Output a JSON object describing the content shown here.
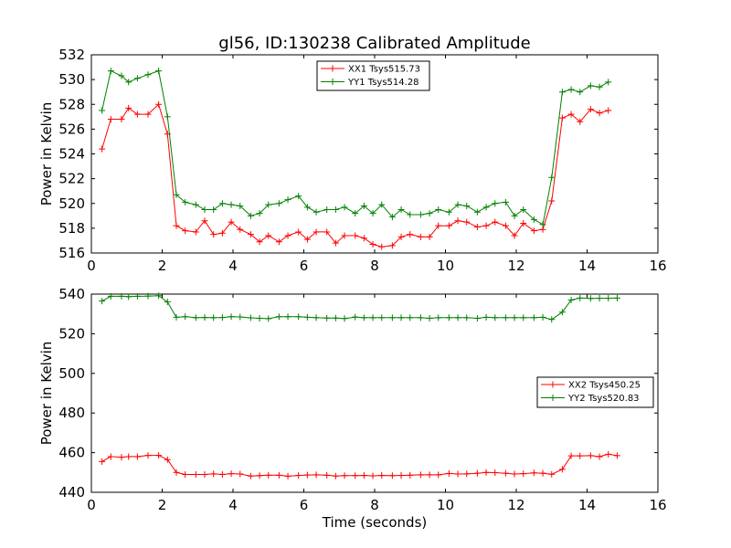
{
  "figure": {
    "title": "gl56, ID:130238 Calibrated Amplitude"
  },
  "colors": {
    "background": "#ffffff",
    "axes": "#000000",
    "XX1": "#ff0000",
    "YY1": "#008000",
    "XX2": "#ff0000",
    "YY2": "#008000"
  },
  "chart_data": [
    {
      "type": "line",
      "title": "gl56, ID:130238 Calibrated Amplitude",
      "xlabel": "",
      "ylabel": "Power in Kelvin",
      "xlim": [
        0,
        16
      ],
      "ylim": [
        516,
        532
      ],
      "xticks": [
        0,
        2,
        4,
        6,
        8,
        10,
        12,
        14,
        16
      ],
      "yticks": [
        516,
        518,
        520,
        522,
        524,
        526,
        528,
        530,
        532
      ],
      "grid": false,
      "legend_position": "top-center",
      "marker": "plus",
      "x": [
        0.3,
        0.55,
        0.85,
        1.05,
        1.3,
        1.6,
        1.9,
        2.15,
        2.4,
        2.65,
        2.95,
        3.2,
        3.45,
        3.7,
        3.95,
        4.2,
        4.5,
        4.75,
        5.0,
        5.3,
        5.55,
        5.85,
        6.1,
        6.35,
        6.65,
        6.9,
        7.15,
        7.45,
        7.7,
        7.95,
        8.2,
        8.5,
        8.75,
        9.0,
        9.3,
        9.55,
        9.8,
        10.1,
        10.35,
        10.6,
        10.9,
        11.15,
        11.4,
        11.7,
        11.95,
        12.2,
        12.5,
        12.75,
        13.0,
        13.3,
        13.55,
        13.8,
        14.1,
        14.35,
        14.6,
        14.85
      ],
      "series": [
        {
          "name": "XX1 Tsys515.73",
          "values": [
            524.4,
            526.8,
            526.8,
            527.7,
            527.2,
            527.2,
            528.0,
            525.6,
            518.2,
            517.8,
            517.7,
            518.6,
            517.5,
            517.6,
            518.5,
            517.9,
            517.5,
            516.9,
            517.4,
            516.9,
            517.4,
            517.7,
            517.1,
            517.7,
            517.7,
            516.8,
            517.4,
            517.4,
            517.2,
            516.7,
            516.5,
            516.6,
            517.3,
            517.5,
            517.3,
            517.3,
            518.2,
            518.2,
            518.6,
            518.5,
            518.1,
            518.2,
            518.5,
            518.2,
            517.4,
            518.4,
            517.8,
            517.9,
            520.2,
            526.9,
            527.2,
            526.6,
            527.6,
            527.3,
            527.5,
            null
          ]
        },
        {
          "name": "YY1 Tsys514.28",
          "values": [
            527.5,
            530.7,
            530.3,
            529.8,
            530.1,
            530.4,
            530.7,
            527.0,
            520.7,
            520.1,
            519.9,
            519.5,
            519.5,
            520.0,
            519.9,
            519.8,
            519.0,
            519.2,
            519.9,
            520.0,
            520.3,
            520.6,
            519.7,
            519.3,
            519.5,
            519.5,
            519.7,
            519.2,
            519.8,
            519.2,
            519.9,
            518.9,
            519.5,
            519.1,
            519.1,
            519.2,
            519.5,
            519.3,
            519.9,
            519.8,
            519.3,
            519.7,
            520.0,
            520.1,
            519.0,
            519.5,
            518.7,
            518.3,
            522.1,
            529.0,
            529.2,
            529.0,
            529.5,
            529.4,
            529.8,
            null
          ]
        }
      ]
    },
    {
      "type": "line",
      "title": "",
      "xlabel": "Time (seconds)",
      "ylabel": "Power in Kelvin",
      "xlim": [
        0,
        16
      ],
      "ylim": [
        440,
        540
      ],
      "xticks": [
        0,
        2,
        4,
        6,
        8,
        10,
        12,
        14,
        16
      ],
      "yticks": [
        440,
        460,
        480,
        500,
        520,
        540
      ],
      "grid": false,
      "legend_position": "center-right",
      "marker": "plus",
      "x": [
        0.3,
        0.55,
        0.85,
        1.05,
        1.3,
        1.6,
        1.9,
        2.15,
        2.4,
        2.65,
        2.95,
        3.2,
        3.45,
        3.7,
        3.95,
        4.2,
        4.5,
        4.75,
        5.0,
        5.3,
        5.55,
        5.85,
        6.1,
        6.35,
        6.65,
        6.9,
        7.15,
        7.45,
        7.7,
        7.95,
        8.2,
        8.5,
        8.75,
        9.0,
        9.3,
        9.55,
        9.8,
        10.1,
        10.35,
        10.6,
        10.9,
        11.15,
        11.4,
        11.7,
        11.95,
        12.2,
        12.5,
        12.75,
        13.0,
        13.3,
        13.55,
        13.8,
        14.1,
        14.35,
        14.6,
        14.85
      ],
      "series": [
        {
          "name": "XX2 Tsys450.25",
          "values": [
            455.5,
            458.0,
            457.7,
            458.0,
            458.0,
            458.6,
            458.6,
            456.5,
            450.0,
            449.0,
            449.0,
            449.0,
            449.3,
            449.0,
            449.4,
            449.2,
            448.2,
            448.4,
            448.6,
            448.6,
            448.1,
            448.5,
            448.7,
            448.8,
            448.6,
            448.2,
            448.4,
            448.4,
            448.5,
            448.3,
            448.5,
            448.4,
            448.5,
            448.6,
            448.8,
            448.8,
            448.8,
            449.5,
            449.2,
            449.3,
            449.6,
            450.0,
            449.9,
            449.6,
            449.2,
            449.4,
            449.8,
            449.6,
            449.1,
            451.6,
            458.4,
            458.4,
            458.5,
            458.0,
            459.2,
            458.5
          ]
        },
        {
          "name": "YY2 Tsys520.83",
          "values": [
            536.5,
            538.9,
            538.9,
            538.7,
            538.9,
            539.0,
            539.2,
            536.0,
            528.3,
            528.6,
            528.1,
            528.2,
            528.1,
            528.2,
            528.6,
            528.5,
            528.0,
            527.8,
            527.6,
            528.6,
            528.6,
            528.6,
            528.3,
            528.1,
            527.9,
            527.9,
            527.7,
            528.4,
            528.1,
            528.1,
            528.1,
            528.1,
            528.1,
            528.1,
            528.1,
            527.8,
            528.1,
            528.1,
            528.1,
            528.1,
            527.8,
            528.3,
            528.1,
            528.1,
            528.1,
            528.1,
            528.1,
            528.3,
            527.2,
            530.9,
            537.0,
            538.0,
            537.8,
            537.9,
            537.9,
            538.0
          ]
        }
      ]
    }
  ]
}
